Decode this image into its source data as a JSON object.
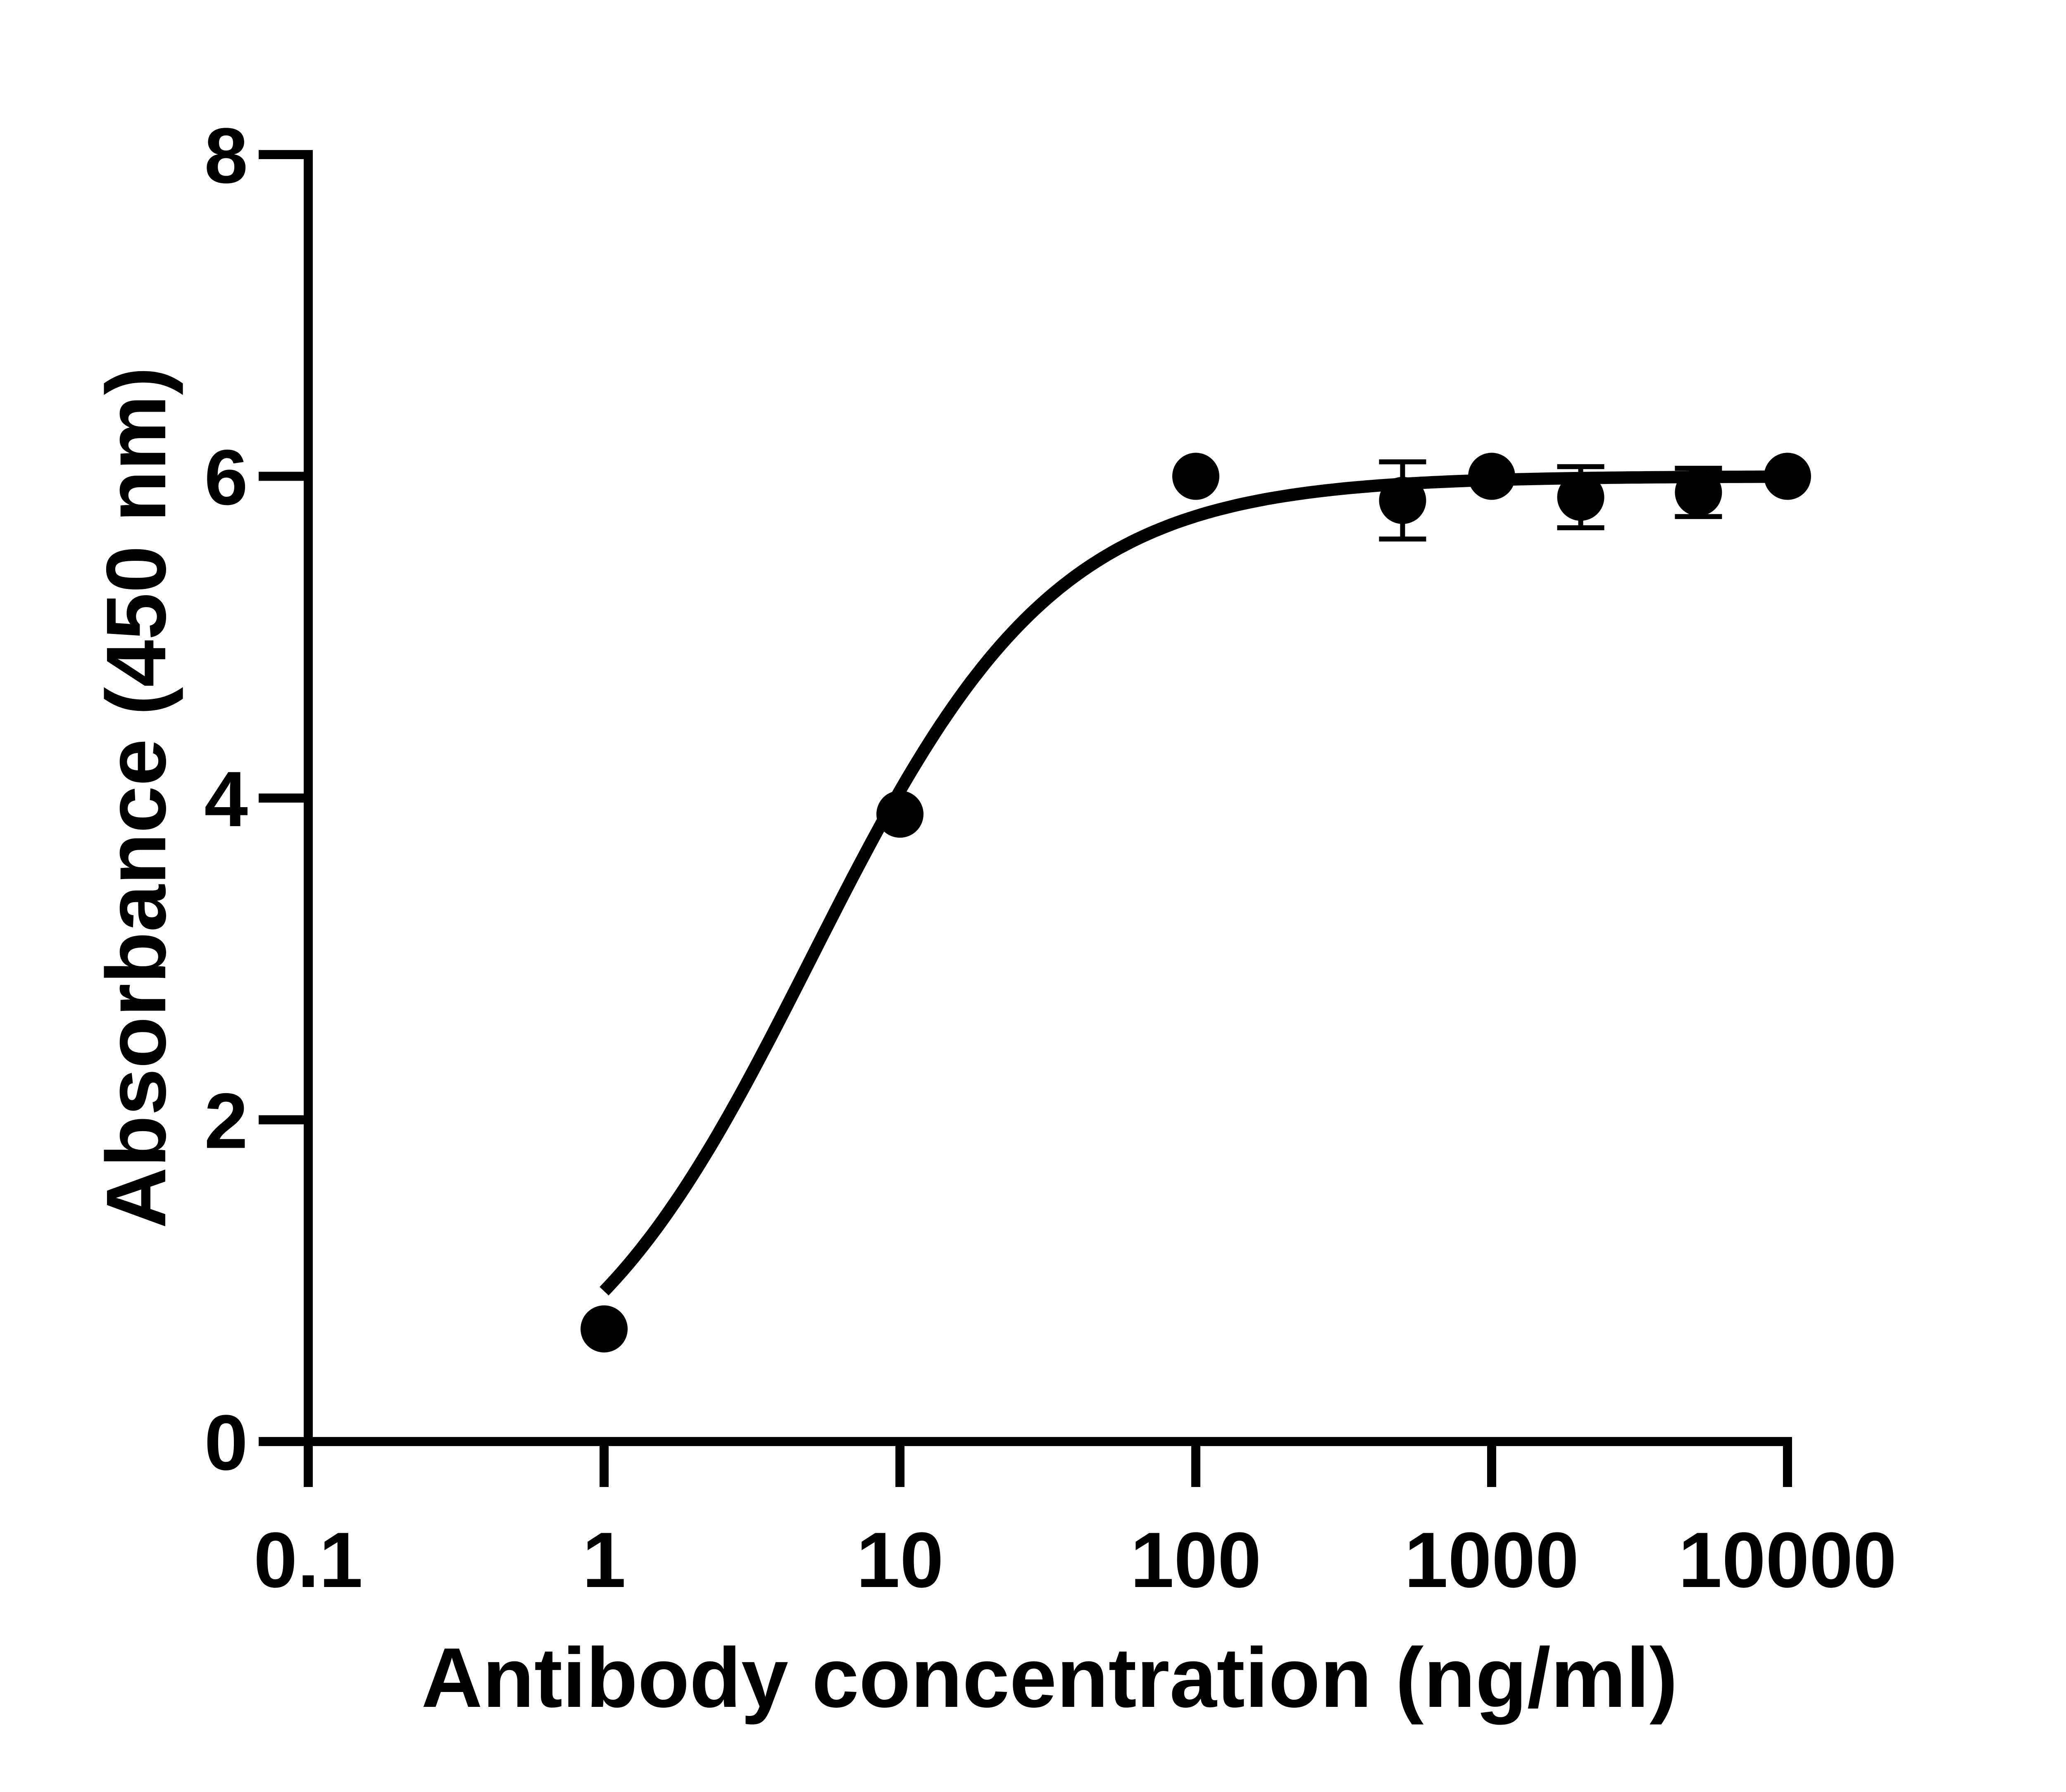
{
  "chart_data": {
    "type": "scatter",
    "title": "",
    "xlabel": "Antibody concentration (ng/ml)",
    "ylabel": "Absorbance (450 nm)",
    "xscale": "log",
    "xlim": [
      0.1,
      10000
    ],
    "ylim": [
      0,
      8
    ],
    "x_ticks": [
      "0.1",
      "1",
      "10",
      "100",
      "1000",
      "10000"
    ],
    "y_ticks": [
      "0",
      "2",
      "4",
      "6",
      "8"
    ],
    "grid": false,
    "legend": null,
    "series": [
      {
        "name": "Absorbance",
        "marker": "filled-circle",
        "color": "#000000",
        "points": [
          {
            "x": 1,
            "y": 0.7,
            "err": 0
          },
          {
            "x": 10,
            "y": 3.9,
            "err": 0
          },
          {
            "x": 100,
            "y": 6.0,
            "err": 0
          },
          {
            "x": 500,
            "y": 5.85,
            "err": 0.24
          },
          {
            "x": 1000,
            "y": 6.0,
            "err": 0
          },
          {
            "x": 2000,
            "y": 5.87,
            "err": 0.19
          },
          {
            "x": 5000,
            "y": 5.9,
            "err": 0.15
          },
          {
            "x": 10000,
            "y": 6.0,
            "err": 0
          }
        ]
      }
    ],
    "fit": {
      "type": "4PL",
      "bottom": 0.0,
      "top": 6.0,
      "ec50": 5.0,
      "hill": 1.05,
      "x_range": [
        1,
        10000
      ]
    }
  }
}
